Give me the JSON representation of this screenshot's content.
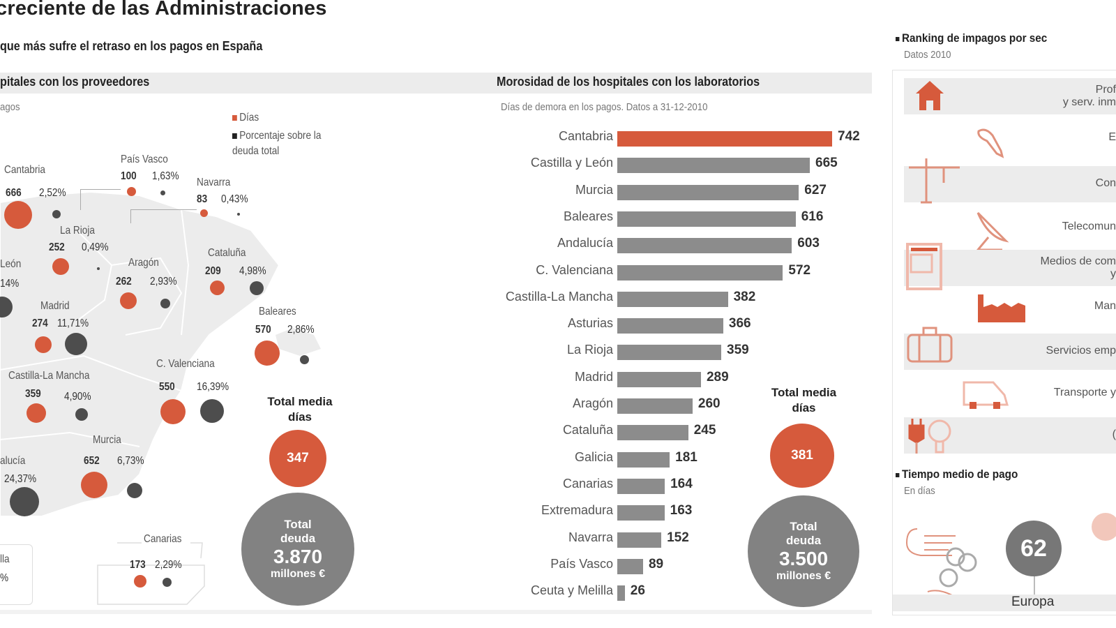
{
  "header": {
    "title": "creciente de las Administraciones",
    "subtitle": "que más sufre el retraso en los pagos en España"
  },
  "providers_section": {
    "title": "pitales con los proveedores",
    "note": "agos",
    "legend": [
      {
        "label": "Días",
        "color": "#d65a3c"
      },
      {
        "label": "Porcentaje sobre la deuda total",
        "color": "#222222"
      }
    ],
    "regions": [
      {
        "name": "Cantabria",
        "days": "666",
        "pct": "2,52%"
      },
      {
        "name": "País Vasco",
        "days": "100",
        "pct": "1,63%"
      },
      {
        "name": "Navarra",
        "days": "83",
        "pct": "0,43%"
      },
      {
        "name": "La Rioja",
        "days": "252",
        "pct": "0,49%"
      },
      {
        "name": "León",
        "days": "",
        "pct": "14%"
      },
      {
        "name": "Aragón",
        "days": "262",
        "pct": "2,93%"
      },
      {
        "name": "Cataluña",
        "days": "209",
        "pct": "4,98%"
      },
      {
        "name": "Madrid",
        "days": "274",
        "pct": "11,71%"
      },
      {
        "name": "Baleares",
        "days": "570",
        "pct": "2,86%"
      },
      {
        "name": "Castilla-La Mancha",
        "days": "359",
        "pct": "4,90%"
      },
      {
        "name": "C. Valenciana",
        "days": "550",
        "pct": "16,39%"
      },
      {
        "name": "Murcia",
        "days": "652",
        "pct": "6,73%"
      },
      {
        "name": "alucía",
        "days": "",
        "pct": "24,37%"
      },
      {
        "name": "Canarias",
        "days": "173",
        "pct": "2,29%"
      },
      {
        "name": "lla",
        "days": "",
        "pct": "%"
      }
    ],
    "total_days": {
      "label": "Total media días",
      "value": "347"
    },
    "total_debt": {
      "label": "Total deuda",
      "value": "3.870",
      "unit": "millones €"
    }
  },
  "labs_section": {
    "title": "Morosidad de los hospitales con los laboratorios",
    "note": "Días de demora en los pagos. Datos a 31-12-2010",
    "total_days": {
      "label": "Total media días",
      "value": "381"
    },
    "total_debt": {
      "label": "Total deuda",
      "value": "3.500",
      "unit": "millones €"
    }
  },
  "ranking_section": {
    "title": "Ranking de impagos por sec",
    "subtitle": "Datos 2010",
    "rows": [
      {
        "icon": "house-icon",
        "label": "Prof\ny serv. inm"
      },
      {
        "icon": "pen-icon",
        "label": "E"
      },
      {
        "icon": "crane-icon",
        "label": "Con"
      },
      {
        "icon": "satellite-dish-icon",
        "label": "Telecomun"
      },
      {
        "icon": "newspaper-icon",
        "label": "Medios de com\ny"
      },
      {
        "icon": "factory-icon",
        "label": "Man"
      },
      {
        "icon": "briefcase-icon",
        "label": "Servicios emp"
      },
      {
        "icon": "truck-icon",
        "label": "Transporte y"
      },
      {
        "icon": "plug-bulb-icon",
        "label": "("
      }
    ]
  },
  "payment_section": {
    "title": "Tiempo medio de pago",
    "subtitle": "En días",
    "items": [
      {
        "region": "Europa",
        "days": "62"
      }
    ]
  },
  "chart_data": {
    "type": "bar",
    "orientation": "horizontal",
    "title": "Morosidad de los hospitales con los laboratorios",
    "subtitle": "Días de demora en los pagos. Datos a 31-12-2010",
    "xlabel": "",
    "ylabel": "",
    "categories": [
      "Cantabria",
      "Castilla y León",
      "Murcia",
      "Baleares",
      "Andalucía",
      "C. Valenciana",
      "Castilla-La Mancha",
      "Asturias",
      "La Rioja",
      "Madrid",
      "Aragón",
      "Cataluña",
      "Galicia",
      "Canarias",
      "Extremadura",
      "Navarra",
      "País Vasco",
      "Ceuta y Melilla"
    ],
    "values": [
      742,
      665,
      627,
      616,
      603,
      572,
      382,
      366,
      359,
      289,
      260,
      245,
      181,
      164,
      163,
      152,
      89,
      26
    ],
    "highlight": {
      "category": "Cantabria",
      "color": "#d65a3c"
    },
    "bar_color": "#8c8c8c",
    "xlim": [
      0,
      742
    ],
    "grid": false
  }
}
